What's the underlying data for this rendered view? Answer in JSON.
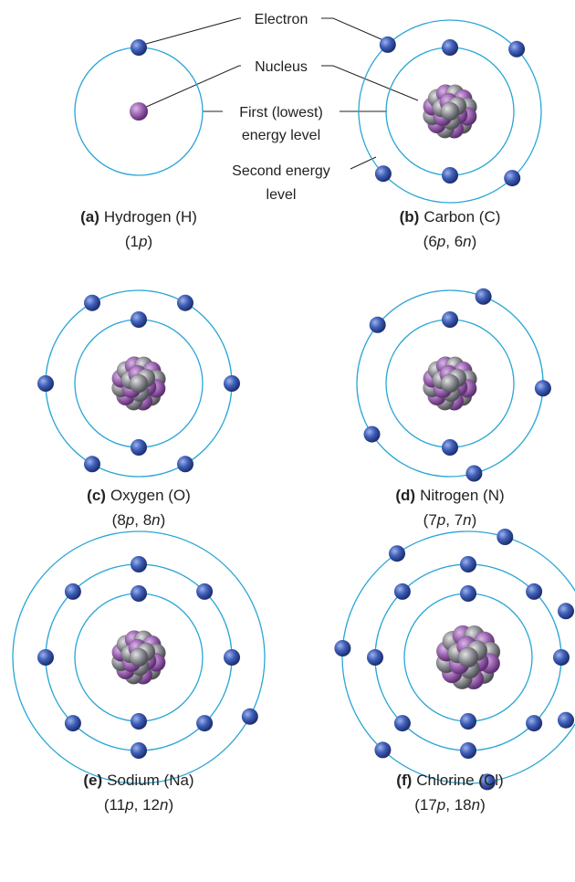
{
  "labels": {
    "electron": "Electron",
    "nucleus": "Nucleus",
    "first_level": [
      "First (lowest)",
      "energy level"
    ],
    "second_level": [
      "Second energy",
      "level"
    ]
  },
  "atoms": [
    {
      "letter": "(a)",
      "name": "Hydrogen (H)",
      "formula": "(1p)"
    },
    {
      "letter": "(b)",
      "name": "Carbon (C)",
      "formula": "(6p, 6n)"
    },
    {
      "letter": "(c)",
      "name": "Oxygen (O)",
      "formula": "(8p, 8n)"
    },
    {
      "letter": "(d)",
      "name": "Nitrogen (N)",
      "formula": "(7p, 7n)"
    },
    {
      "letter": "(e)",
      "name": "Sodium (Na)",
      "formula": "(11p, 12n)"
    },
    {
      "letter": "(f)",
      "name": "Chlorine (Cl)",
      "formula": "(17p, 18n)"
    }
  ]
}
